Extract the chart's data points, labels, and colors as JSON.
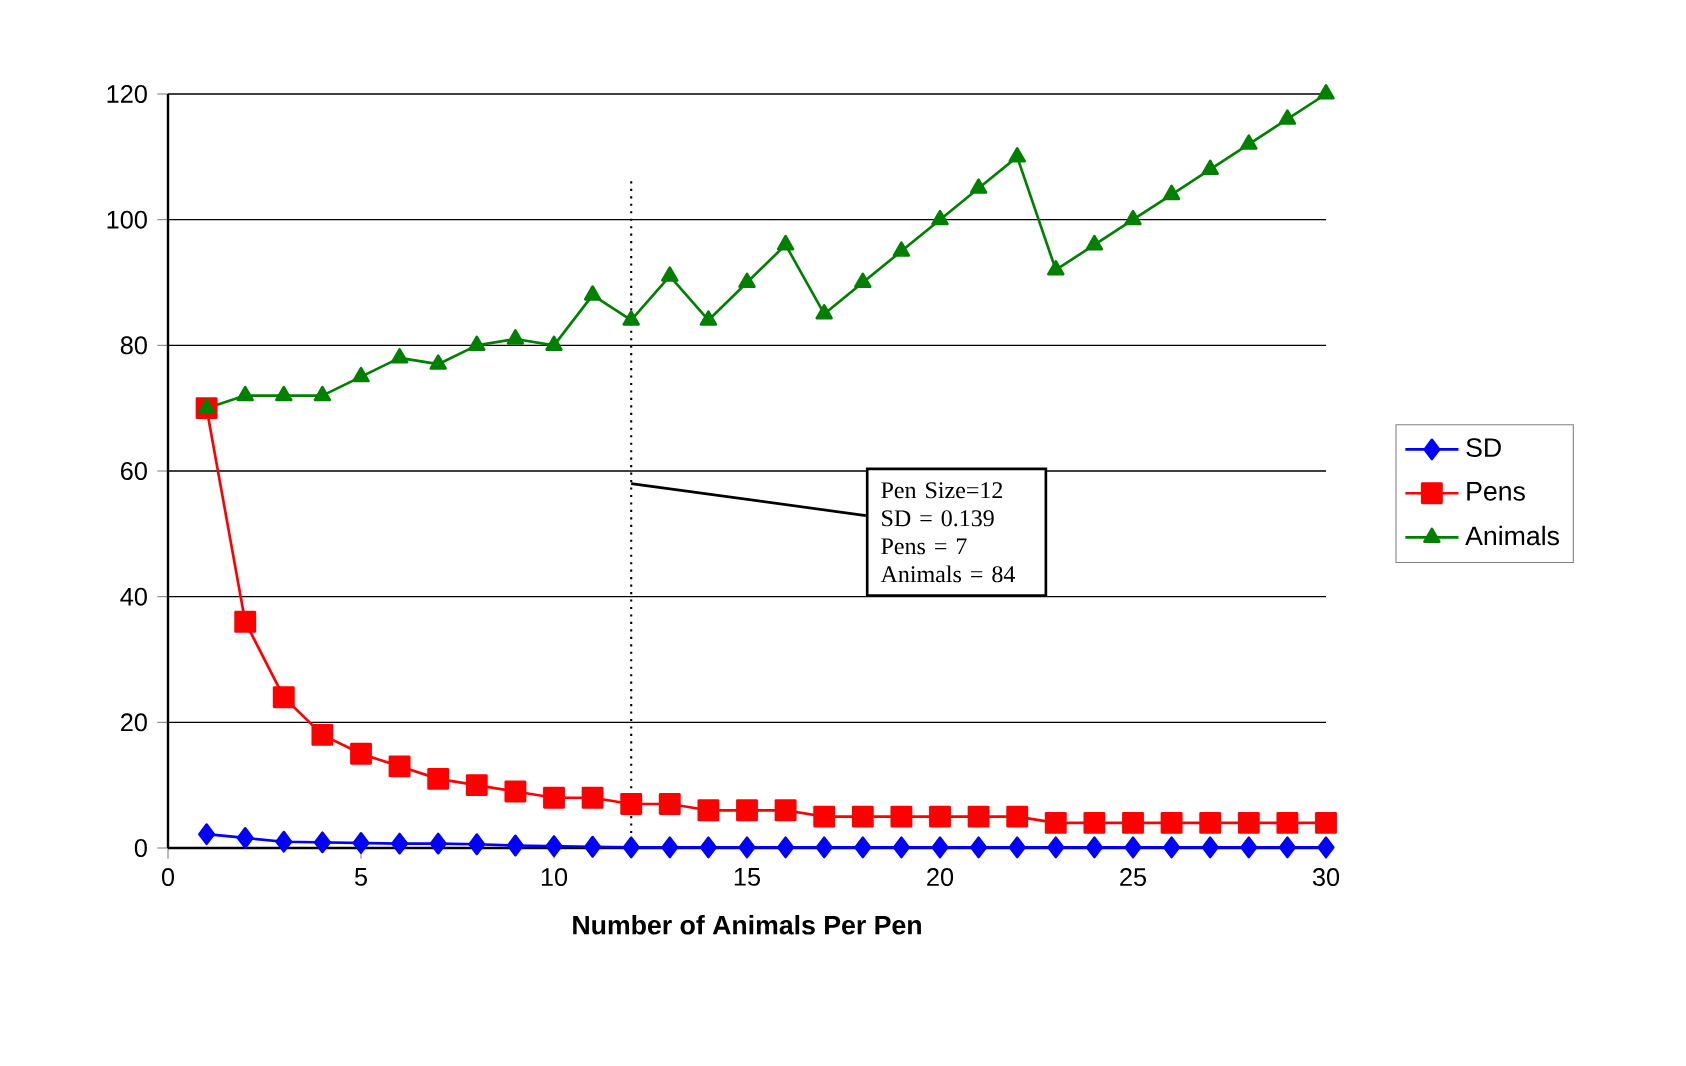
{
  "chart_data": {
    "type": "line",
    "xlabel": "Number of Animals Per Pen",
    "x": [
      1,
      2,
      3,
      4,
      5,
      6,
      7,
      8,
      9,
      10,
      11,
      12,
      13,
      14,
      15,
      16,
      17,
      18,
      19,
      20,
      21,
      22,
      23,
      24,
      25,
      26,
      27,
      28,
      29,
      30
    ],
    "series": [
      {
        "name": "SD",
        "color": "#0000ff",
        "marker": "diamond",
        "values": [
          2.2,
          1.6,
          1.0,
          0.9,
          0.8,
          0.7,
          0.7,
          0.6,
          0.4,
          0.3,
          0.2,
          0.1,
          0.1,
          0.1,
          0.1,
          0.1,
          0.1,
          0.1,
          0.1,
          0.1,
          0.1,
          0.1,
          0.1,
          0.1,
          0.1,
          0.1,
          0.1,
          0.1,
          0.1,
          0.1
        ]
      },
      {
        "name": "Pens",
        "color": "#ff0000",
        "marker": "square",
        "values": [
          70,
          36,
          24,
          18,
          15,
          13,
          11,
          10,
          9,
          8,
          8,
          7,
          7,
          6,
          6,
          6,
          5,
          5,
          5,
          5,
          5,
          5,
          4,
          4,
          4,
          4,
          4,
          4,
          4,
          4
        ]
      },
      {
        "name": "Animals",
        "color": "#008000",
        "marker": "triangle",
        "values": [
          70,
          72,
          72,
          72,
          75,
          78,
          77,
          80,
          81,
          80,
          88,
          84,
          91,
          84,
          90,
          96,
          85,
          90,
          95,
          100,
          105,
          110,
          92,
          96,
          100,
          104,
          108,
          112,
          116,
          120
        ]
      }
    ],
    "xlim": [
      0,
      30
    ],
    "xticks": [
      0,
      5,
      10,
      15,
      20,
      25,
      30
    ],
    "ylim": [
      0,
      120
    ],
    "yticks": [
      0,
      20,
      40,
      60,
      80,
      100,
      120
    ],
    "grid": "y",
    "legend": "right",
    "line_style": "solid",
    "ref_lines": [
      {
        "axis": "x",
        "value": 12,
        "line_style": "dotted",
        "color": "#000000"
      }
    ],
    "annotations": [
      {
        "text": "Pen Size=12 SD = 0.139 Pens = 7 Animals = 84",
        "x": 12,
        "y": 58
      }
    ]
  }
}
